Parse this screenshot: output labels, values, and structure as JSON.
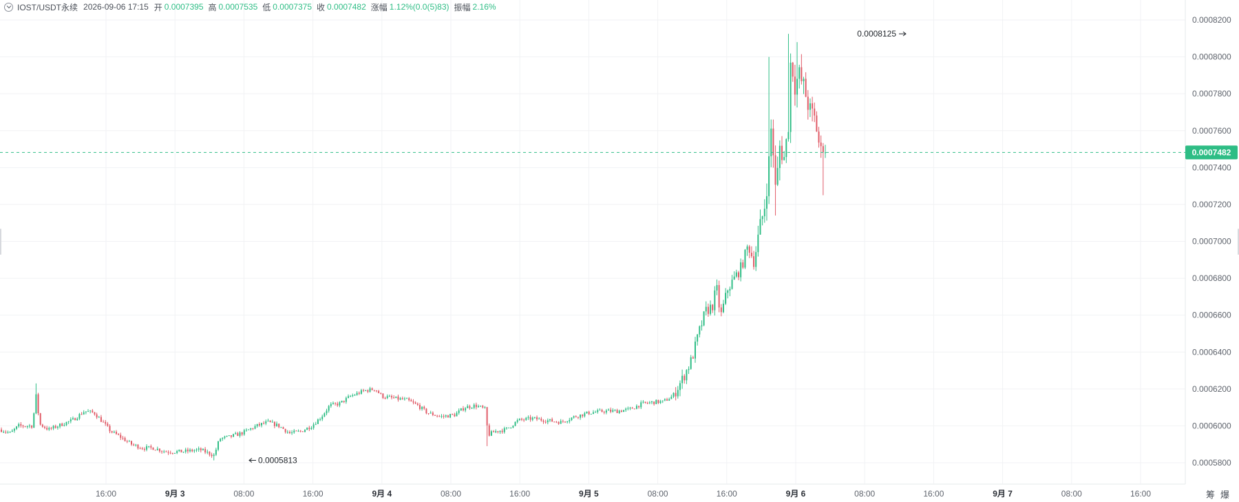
{
  "header": {
    "symbol": "IOST/USDT永续",
    "time": "2026-09-06 17:15",
    "open_label": "开",
    "open": "0.0007395",
    "high_label": "高",
    "high": "0.0007535",
    "low_label": "低",
    "low": "0.0007375",
    "close_label": "收",
    "close": "0.0007482",
    "change_label": "涨幅",
    "change": "1.12%(0.0(5)83)",
    "amplitude_label": "振幅",
    "amplitude": "2.16%"
  },
  "toolbar": {
    "chips_label": "筹",
    "burst_label": "爆"
  },
  "chart_data": {
    "type": "candlestick",
    "interval": "15m",
    "x_axis_labels": [
      "16:00",
      "9月 3",
      "08:00",
      "16:00",
      "9月 4",
      "08:00",
      "16:00",
      "9月 5",
      "08:00",
      "16:00",
      "9月 6",
      "08:00",
      "16:00",
      "9月 7",
      "08:00",
      "16:00"
    ],
    "y_axis_labels": [
      "0.0008200",
      "0.0008000",
      "0.0007800",
      "0.0007600",
      "0.0007400",
      "0.0007200",
      "0.0007000",
      "0.0006800",
      "0.0006600",
      "0.0006400",
      "0.0006200",
      "0.0006000",
      "0.0005800"
    ],
    "ylim": [
      0.000577,
      0.000828
    ],
    "last_price": "0.0007482",
    "max_annotation": "0.0008125",
    "min_annotation": "0.0005813",
    "up_color": "#2ebd85",
    "down_color": "#e05a66",
    "grid": true,
    "price_path": [
      [
        0,
        0.000598
      ],
      [
        14,
        0.000596
      ],
      [
        26,
        0.0006
      ],
      [
        46,
        0.0006
      ],
      [
        52,
        0.000618
      ],
      [
        56,
        0.000601
      ],
      [
        70,
        0.000598
      ],
      [
        90,
        0.000601
      ],
      [
        104,
        0.000603
      ],
      [
        122,
        0.000608
      ],
      [
        136,
        0.000607
      ],
      [
        146,
        0.000603
      ],
      [
        160,
        0.000597
      ],
      [
        174,
        0.000594
      ],
      [
        190,
        0.00059
      ],
      [
        206,
        0.000588
      ],
      [
        222,
        0.000588
      ],
      [
        240,
        0.000586
      ],
      [
        262,
        0.000586
      ],
      [
        290,
        0.000587
      ],
      [
        310,
        0.000584
      ],
      [
        318,
        0.000593
      ],
      [
        332,
        0.000594
      ],
      [
        350,
        0.000596
      ],
      [
        372,
        0.0006
      ],
      [
        388,
        0.000602
      ],
      [
        404,
        0.0006
      ],
      [
        420,
        0.000596
      ],
      [
        436,
        0.000597
      ],
      [
        452,
        0.0006
      ],
      [
        466,
        0.000605
      ],
      [
        478,
        0.000611
      ],
      [
        492,
        0.000612
      ],
      [
        508,
        0.000616
      ],
      [
        528,
        0.000619
      ],
      [
        544,
        0.00062
      ],
      [
        554,
        0.000616
      ],
      [
        570,
        0.000615
      ],
      [
        590,
        0.000614
      ],
      [
        606,
        0.000611
      ],
      [
        620,
        0.000607
      ],
      [
        640,
        0.000605
      ],
      [
        660,
        0.000606
      ],
      [
        674,
        0.00061
      ],
      [
        690,
        0.000611
      ],
      [
        704,
        0.000609
      ],
      [
        708,
        0.000595
      ],
      [
        718,
        0.000597
      ],
      [
        734,
        0.000598
      ],
      [
        752,
        0.000603
      ],
      [
        772,
        0.000604
      ],
      [
        792,
        0.000603
      ],
      [
        814,
        0.000602
      ],
      [
        834,
        0.000605
      ],
      [
        854,
        0.000607
      ],
      [
        876,
        0.000608
      ],
      [
        896,
        0.000608
      ],
      [
        914,
        0.000609
      ],
      [
        932,
        0.000612
      ],
      [
        952,
        0.000613
      ],
      [
        962,
        0.000613
      ],
      [
        976,
        0.000616
      ],
      [
        990,
        0.000625
      ],
      [
        1004,
        0.000636
      ],
      [
        1014,
        0.00065
      ],
      [
        1024,
        0.000662
      ],
      [
        1034,
        0.000665
      ],
      [
        1040,
        0.000675
      ],
      [
        1046,
        0.000659
      ],
      [
        1056,
        0.000674
      ],
      [
        1066,
        0.00068
      ],
      [
        1076,
        0.000686
      ],
      [
        1086,
        0.000698
      ],
      [
        1094,
        0.000689
      ],
      [
        1102,
        0.000704
      ],
      [
        1110,
        0.00072
      ],
      [
        1116,
        0.000742
      ],
      [
        1120,
        0.000765
      ],
      [
        1126,
        0.000725
      ],
      [
        1132,
        0.000752
      ],
      [
        1138,
        0.000745
      ],
      [
        1144,
        0.00076
      ],
      [
        1148,
        0.0008
      ],
      [
        1154,
        0.000785
      ],
      [
        1160,
        0.00079
      ],
      [
        1168,
        0.000782
      ],
      [
        1176,
        0.00077
      ],
      [
        1184,
        0.000765
      ],
      [
        1190,
        0.00075
      ],
      [
        1196,
        0.000742
      ],
      [
        1200,
        0.000748
      ]
    ]
  }
}
